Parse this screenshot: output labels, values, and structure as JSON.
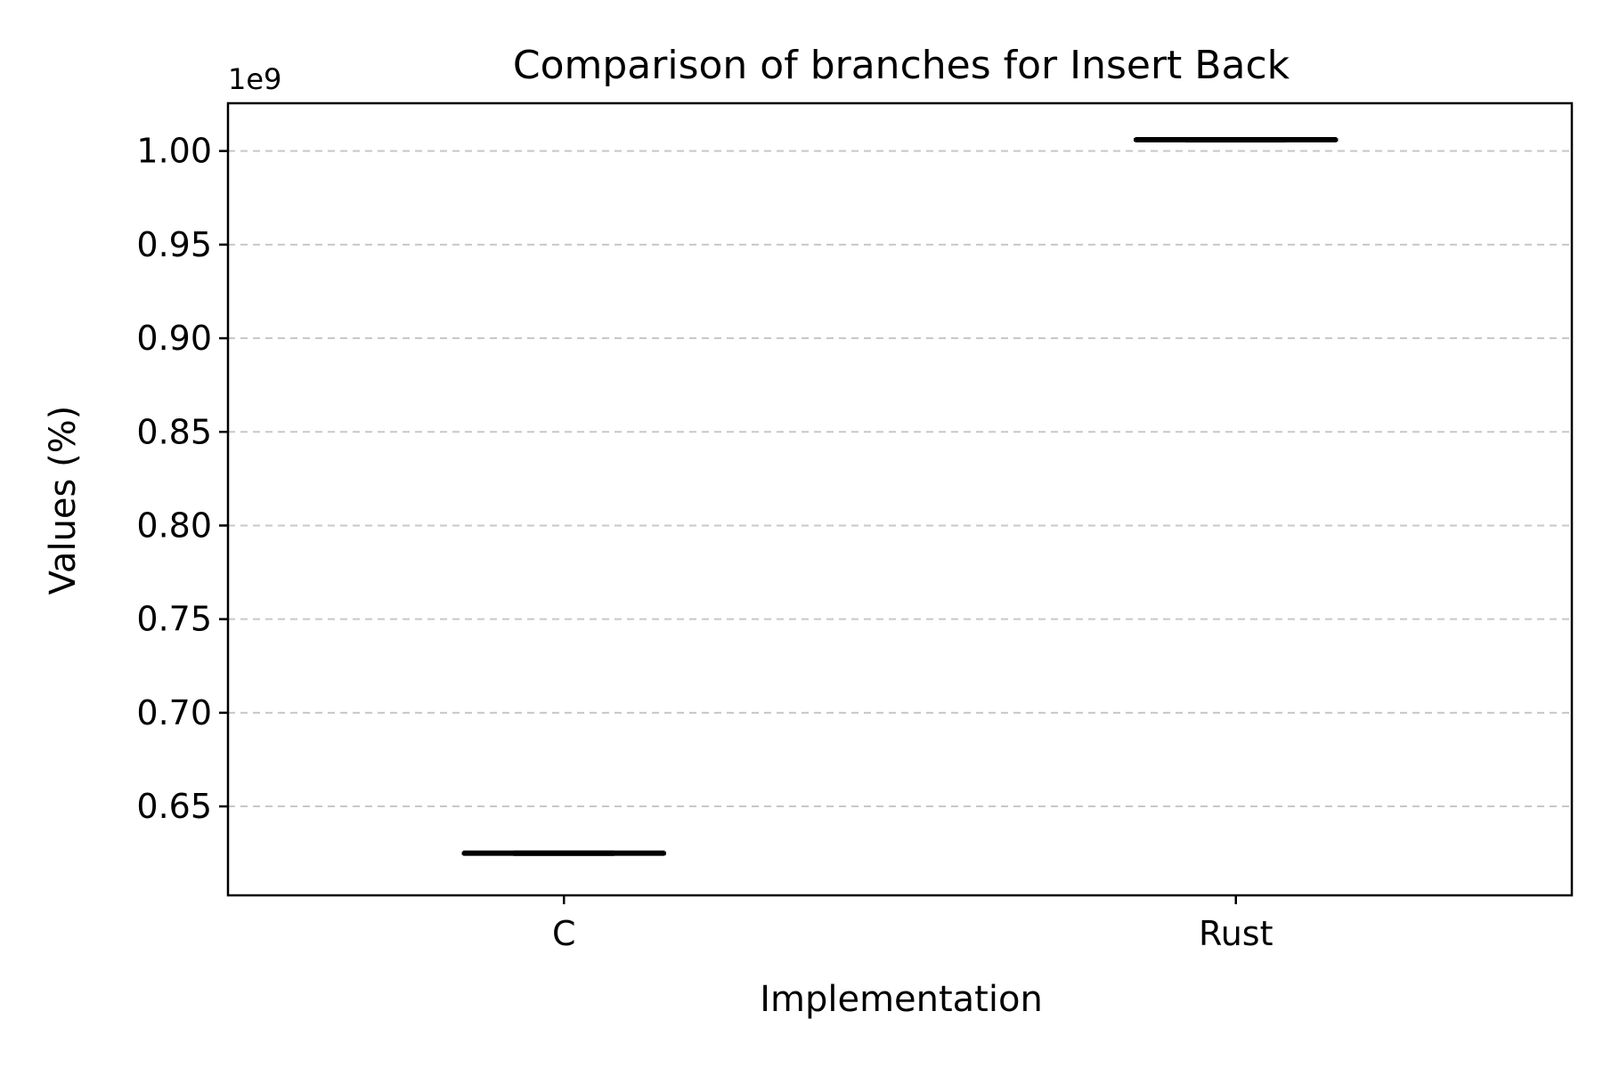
{
  "chart_data": {
    "type": "box",
    "title": "Comparison of branches for Insert Back",
    "xlabel": "Implementation",
    "ylabel": "Values (%)",
    "y_offset_label": "1e9",
    "y_scale": 1000000000,
    "ylim": [
      0.6025,
      1.0255
    ],
    "yticks": [
      0.65,
      0.7,
      0.75,
      0.8,
      0.85,
      0.9,
      0.95,
      1.0
    ],
    "ytick_labels": [
      "0.65",
      "0.70",
      "0.75",
      "0.80",
      "0.85",
      "0.90",
      "0.95",
      "1.00"
    ],
    "grid": "y-dashed",
    "categories": [
      "C",
      "Rust"
    ],
    "boxes": [
      {
        "name": "C",
        "whisker_low": 0.6245,
        "q1": 0.6248,
        "median": 0.625,
        "q3": 0.6252,
        "whisker_high": 0.6255
      },
      {
        "name": "Rust",
        "whisker_low": 1.0055,
        "q1": 1.0058,
        "median": 1.006,
        "q3": 1.0062,
        "whisker_high": 1.0065
      }
    ]
  }
}
